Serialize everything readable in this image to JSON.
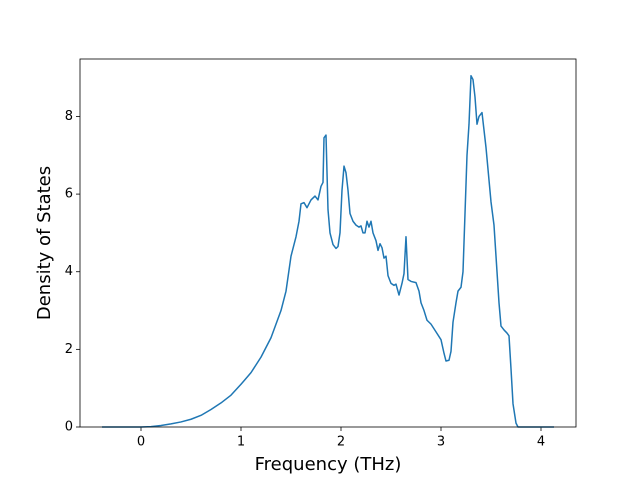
{
  "chart_data": {
    "type": "line",
    "x_label": "Frequency (THz)",
    "y_label": "Density of States",
    "color": "#1f77b4",
    "x": [
      -0.39,
      0,
      0.1,
      0.2,
      0.3,
      0.4,
      0.5,
      0.6,
      0.7,
      0.8,
      0.9,
      1.0,
      1.1,
      1.2,
      1.3,
      1.4,
      1.45,
      1.5,
      1.55,
      1.58,
      1.6,
      1.63,
      1.66,
      1.7,
      1.74,
      1.77,
      1.8,
      1.82,
      1.83,
      1.85,
      1.87,
      1.89,
      1.92,
      1.95,
      1.97,
      1.99,
      2.01,
      2.03,
      2.05,
      2.07,
      2.09,
      2.12,
      2.15,
      2.18,
      2.2,
      2.22,
      2.24,
      2.26,
      2.28,
      2.3,
      2.32,
      2.35,
      2.37,
      2.39,
      2.41,
      2.43,
      2.45,
      2.47,
      2.5,
      2.53,
      2.55,
      2.58,
      2.61,
      2.63,
      2.65,
      2.67,
      2.7,
      2.75,
      2.78,
      2.8,
      2.83,
      2.86,
      2.9,
      2.95,
      3.0,
      3.03,
      3.05,
      3.08,
      3.1,
      3.12,
      3.15,
      3.17,
      3.2,
      3.22,
      3.24,
      3.26,
      3.28,
      3.3,
      3.32,
      3.34,
      3.36,
      3.38,
      3.41,
      3.45,
      3.5,
      3.53,
      3.56,
      3.58,
      3.6,
      3.63,
      3.66,
      3.68,
      3.7,
      3.72,
      3.75,
      3.77,
      4.13
    ],
    "values": [
      0,
      0,
      0.01,
      0.04,
      0.08,
      0.13,
      0.2,
      0.3,
      0.45,
      0.62,
      0.82,
      1.1,
      1.4,
      1.8,
      2.3,
      3.0,
      3.5,
      4.4,
      4.9,
      5.3,
      5.75,
      5.78,
      5.65,
      5.85,
      5.95,
      5.85,
      6.2,
      6.3,
      7.45,
      7.52,
      5.6,
      5.0,
      4.7,
      4.6,
      4.65,
      5.0,
      6.1,
      6.72,
      6.55,
      6.1,
      5.5,
      5.3,
      5.2,
      5.15,
      5.18,
      5.0,
      5.0,
      5.3,
      5.15,
      5.3,
      5.0,
      4.8,
      4.55,
      4.72,
      4.62,
      4.35,
      4.4,
      3.9,
      3.7,
      3.65,
      3.68,
      3.4,
      3.7,
      3.95,
      4.9,
      3.8,
      3.75,
      3.72,
      3.5,
      3.2,
      3.0,
      2.75,
      2.65,
      2.45,
      2.25,
      1.9,
      1.7,
      1.72,
      1.95,
      2.7,
      3.2,
      3.5,
      3.6,
      4.0,
      5.5,
      7.0,
      7.8,
      9.05,
      8.95,
      8.5,
      7.8,
      8.0,
      8.1,
      7.2,
      5.8,
      5.2,
      4.0,
      3.2,
      2.6,
      2.5,
      2.42,
      2.35,
      1.5,
      0.6,
      0.1,
      0,
      0
    ],
    "xlim": [
      -0.61,
      4.35
    ],
    "xticks": [
      0,
      1,
      2,
      3,
      4
    ],
    "ylim": [
      0,
      9.48
    ],
    "yticks": [
      0,
      2,
      4,
      6,
      8
    ]
  }
}
